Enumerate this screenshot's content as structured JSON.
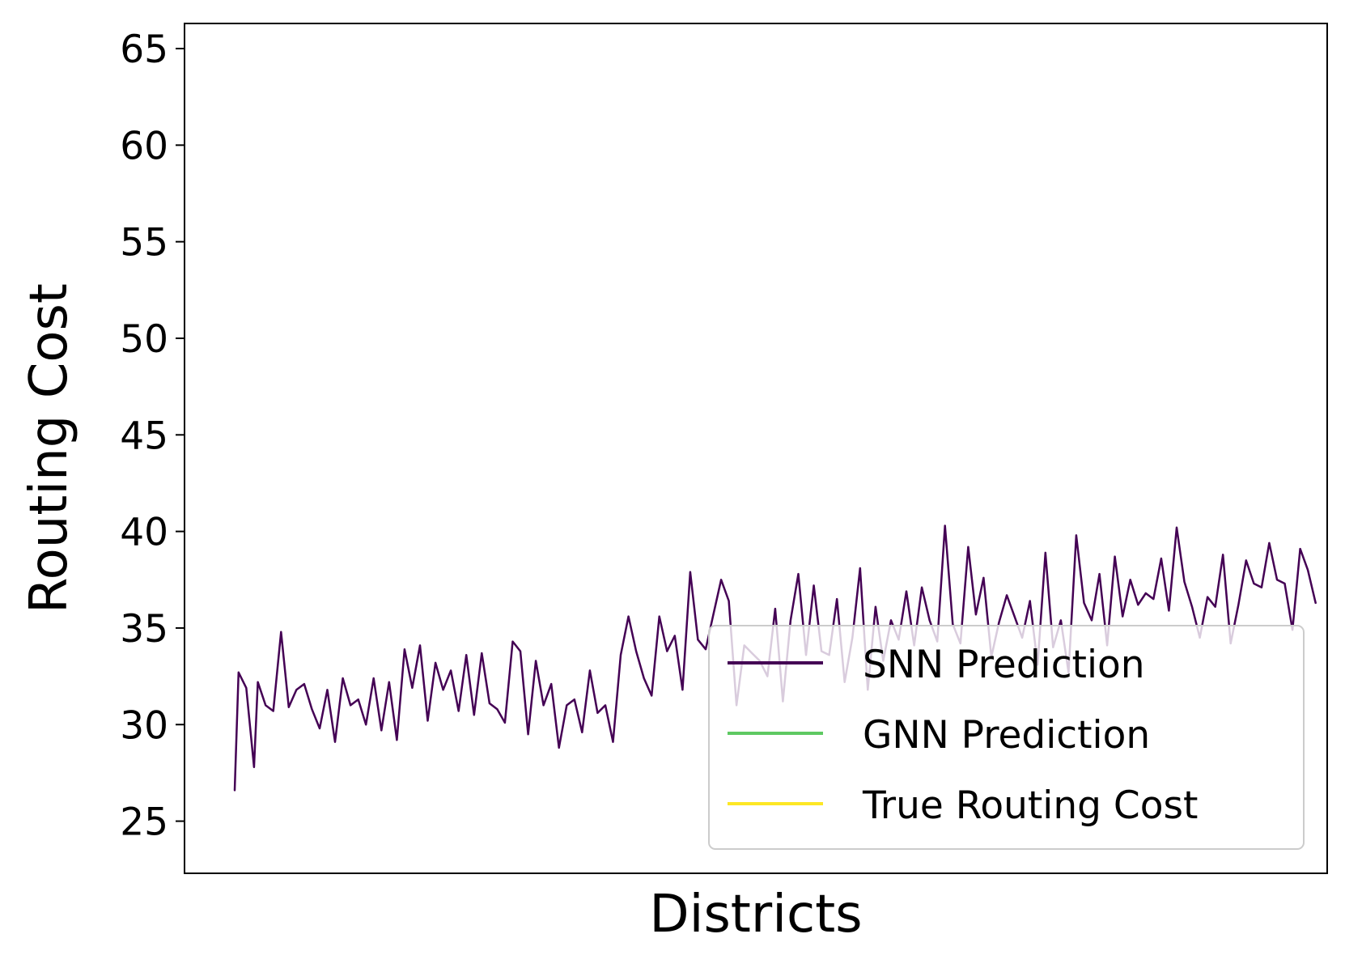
{
  "chart_data": {
    "type": "line",
    "title": "",
    "xlabel": "Districts",
    "ylabel": "Routing Cost",
    "ylim": [
      22.3,
      66.3
    ],
    "xlim": [
      -13,
      283
    ],
    "y_ticks": [
      25,
      30,
      35,
      40,
      45,
      50,
      55,
      60,
      65
    ],
    "x_ticks": [],
    "grid": false,
    "legend_position": "lower-right",
    "series": [
      {
        "name": "SNN Prediction",
        "color": "#440154",
        "points": [
          [
            0,
            26.6
          ],
          [
            1,
            32.7
          ],
          [
            3,
            31.9
          ],
          [
            5,
            27.8
          ],
          [
            6,
            32.2
          ],
          [
            8,
            31.0
          ],
          [
            10,
            30.7
          ],
          [
            12,
            34.8
          ],
          [
            14,
            30.9
          ],
          [
            16,
            31.8
          ],
          [
            18,
            32.1
          ],
          [
            20,
            30.8
          ],
          [
            22,
            29.8
          ],
          [
            24,
            31.8
          ],
          [
            26,
            29.1
          ],
          [
            28,
            32.4
          ],
          [
            30,
            31.0
          ],
          [
            32,
            31.3
          ],
          [
            34,
            30.0
          ],
          [
            36,
            32.4
          ],
          [
            38,
            29.7
          ],
          [
            40,
            32.2
          ],
          [
            42,
            29.2
          ],
          [
            44,
            33.9
          ],
          [
            46,
            31.9
          ],
          [
            48,
            34.1
          ],
          [
            50,
            30.2
          ],
          [
            52,
            33.2
          ],
          [
            54,
            31.8
          ],
          [
            56,
            32.8
          ],
          [
            58,
            30.7
          ],
          [
            60,
            33.6
          ],
          [
            62,
            30.5
          ],
          [
            64,
            33.7
          ],
          [
            66,
            31.1
          ],
          [
            68,
            30.8
          ],
          [
            70,
            30.1
          ],
          [
            72,
            34.3
          ],
          [
            74,
            33.8
          ],
          [
            76,
            29.5
          ],
          [
            78,
            33.3
          ],
          [
            80,
            31.0
          ],
          [
            82,
            32.1
          ],
          [
            84,
            28.8
          ],
          [
            86,
            31.0
          ],
          [
            88,
            31.3
          ],
          [
            90,
            29.6
          ],
          [
            92,
            32.8
          ],
          [
            94,
            30.6
          ],
          [
            96,
            31.0
          ],
          [
            98,
            29.1
          ],
          [
            100,
            33.6
          ],
          [
            102,
            35.6
          ],
          [
            104,
            33.8
          ],
          [
            106,
            32.4
          ],
          [
            108,
            31.5
          ],
          [
            110,
            35.6
          ],
          [
            112,
            33.8
          ],
          [
            114,
            34.6
          ],
          [
            116,
            31.8
          ],
          [
            118,
            37.9
          ],
          [
            120,
            34.4
          ],
          [
            122,
            33.9
          ],
          [
            124,
            35.7
          ],
          [
            126,
            37.5
          ],
          [
            128,
            36.4
          ],
          [
            130,
            31.0
          ],
          [
            132,
            34.1
          ],
          [
            134,
            33.7
          ],
          [
            136,
            33.3
          ],
          [
            138,
            32.5
          ],
          [
            140,
            36.0
          ],
          [
            142,
            31.2
          ],
          [
            144,
            35.4
          ],
          [
            146,
            37.8
          ],
          [
            148,
            33.6
          ],
          [
            150,
            37.2
          ],
          [
            152,
            33.8
          ],
          [
            154,
            33.6
          ],
          [
            156,
            36.5
          ],
          [
            158,
            32.2
          ],
          [
            160,
            34.5
          ],
          [
            162,
            38.1
          ],
          [
            164,
            31.8
          ],
          [
            166,
            36.1
          ],
          [
            168,
            33.3
          ],
          [
            170,
            35.4
          ],
          [
            172,
            34.4
          ],
          [
            174,
            36.9
          ],
          [
            176,
            34.1
          ],
          [
            178,
            37.1
          ],
          [
            180,
            35.4
          ],
          [
            182,
            34.3
          ],
          [
            184,
            40.3
          ],
          [
            186,
            35.2
          ],
          [
            188,
            34.2
          ],
          [
            190,
            39.2
          ],
          [
            192,
            35.7
          ],
          [
            194,
            37.6
          ],
          [
            196,
            33.5
          ],
          [
            198,
            35.3
          ],
          [
            200,
            36.7
          ],
          [
            202,
            35.6
          ],
          [
            204,
            34.5
          ],
          [
            206,
            36.4
          ],
          [
            208,
            33.1
          ],
          [
            210,
            38.9
          ],
          [
            212,
            34.0
          ],
          [
            214,
            35.4
          ],
          [
            216,
            32.7
          ],
          [
            218,
            39.8
          ],
          [
            220,
            36.3
          ],
          [
            222,
            35.4
          ],
          [
            224,
            37.8
          ],
          [
            226,
            34.1
          ],
          [
            228,
            38.7
          ],
          [
            230,
            35.6
          ],
          [
            232,
            37.5
          ],
          [
            234,
            36.2
          ],
          [
            236,
            36.8
          ],
          [
            238,
            36.5
          ],
          [
            240,
            38.6
          ],
          [
            242,
            35.9
          ],
          [
            244,
            40.2
          ],
          [
            246,
            37.4
          ],
          [
            248,
            36.1
          ],
          [
            250,
            34.5
          ],
          [
            252,
            36.6
          ],
          [
            254,
            36.1
          ],
          [
            256,
            38.8
          ],
          [
            258,
            34.2
          ],
          [
            260,
            36.2
          ],
          [
            262,
            38.5
          ],
          [
            264,
            37.3
          ],
          [
            266,
            37.1
          ],
          [
            268,
            39.4
          ],
          [
            270,
            37.5
          ],
          [
            272,
            37.3
          ],
          [
            274,
            34.9
          ],
          [
            276,
            39.1
          ],
          [
            278,
            38.0
          ],
          [
            280,
            36.3
          ]
        ]
      },
      {
        "name": "GNN Prediction",
        "color": "#5ec962",
        "points": []
      },
      {
        "name": "True Routing Cost",
        "color": "#fde725",
        "points": []
      }
    ]
  }
}
